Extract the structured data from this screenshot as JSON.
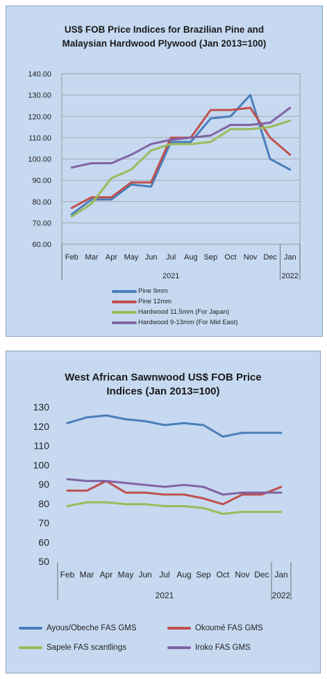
{
  "chart_data": [
    {
      "type": "line",
      "title": "US$ FOB Price Indices for Brazilian Pine and Malaysian Hardwood Plywood (Jan 2013=100)",
      "title_lines": [
        "US$ FOB Price Indices for Brazilian Pine and",
        "Malaysian Hardwood Plywood (Jan 2013=100)"
      ],
      "categories": [
        "Feb",
        "Mar",
        "Apr",
        "May",
        "Jun",
        "Jul",
        "Aug",
        "Sep",
        "Oct",
        "Nov",
        "Dec",
        "Jan"
      ],
      "year_labels": [
        "2021",
        "2022"
      ],
      "ylim": [
        60,
        140
      ],
      "yticks": [
        "60.00",
        "70.00",
        "80.00",
        "90.00",
        "100.00",
        "110.00",
        "120.00",
        "130.00",
        "140.00"
      ],
      "grid": true,
      "legend_position": "bottom",
      "series": [
        {
          "name": "Pine 9mm",
          "color": "#4a7ebb",
          "values": [
            74,
            81,
            81,
            88,
            87,
            108,
            108,
            119,
            120,
            130,
            100,
            95
          ]
        },
        {
          "name": "Pine 12mm",
          "color": "#c0504d",
          "values": [
            77,
            82,
            82,
            89,
            89,
            110,
            110,
            123,
            123,
            124,
            110,
            102
          ]
        },
        {
          "name": "Hardwood 11.5mm (For Japan)",
          "color": "#9bbb59",
          "values": [
            73,
            79,
            91,
            95,
            104,
            107,
            107,
            108,
            114,
            114,
            115,
            118
          ]
        },
        {
          "name": "Hardwood 9-13mm (For Mid East)",
          "color": "#8064a2",
          "values": [
            96,
            98,
            98,
            102,
            107,
            109,
            110,
            111,
            116,
            116,
            117,
            124
          ]
        }
      ]
    },
    {
      "type": "line",
      "title": "West African Sawnwood US$ FOB Price Indices (Jan 2013=100)",
      "title_lines": [
        "West African Sawnwood US$ FOB Price",
        "Indices (Jan 2013=100)"
      ],
      "categories": [
        "Feb",
        "Mar",
        "Apr",
        "May",
        "Jun",
        "Jul",
        "Aug",
        "Sep",
        "Oct",
        "Nov",
        "Dec",
        "Jan"
      ],
      "year_labels": [
        "2021",
        "2022"
      ],
      "ylim": [
        50,
        130
      ],
      "yticks": [
        "50",
        "60",
        "70",
        "80",
        "90",
        "100",
        "110",
        "120",
        "130"
      ],
      "grid": false,
      "legend_position": "bottom",
      "series": [
        {
          "name": "Ayous/Obeche FAS GMS",
          "color": "#4a7ebb",
          "values": [
            122,
            125,
            126,
            124,
            123,
            121,
            122,
            121,
            115,
            117,
            117,
            117
          ]
        },
        {
          "name": "Okoumé FAS GMS",
          "color": "#c0504d",
          "values": [
            87,
            87,
            92,
            86,
            86,
            85,
            85,
            83,
            80,
            85,
            85,
            89
          ]
        },
        {
          "name": "Sapele FAS scantlings",
          "color": "#9bbb59",
          "values": [
            79,
            81,
            81,
            80,
            80,
            79,
            79,
            78,
            75,
            76,
            76,
            76
          ]
        },
        {
          "name": "Iroko FAS GMS",
          "color": "#8064a2",
          "values": [
            93,
            92,
            92,
            91,
            90,
            89,
            90,
            89,
            85,
            86,
            86,
            86
          ]
        }
      ]
    }
  ]
}
